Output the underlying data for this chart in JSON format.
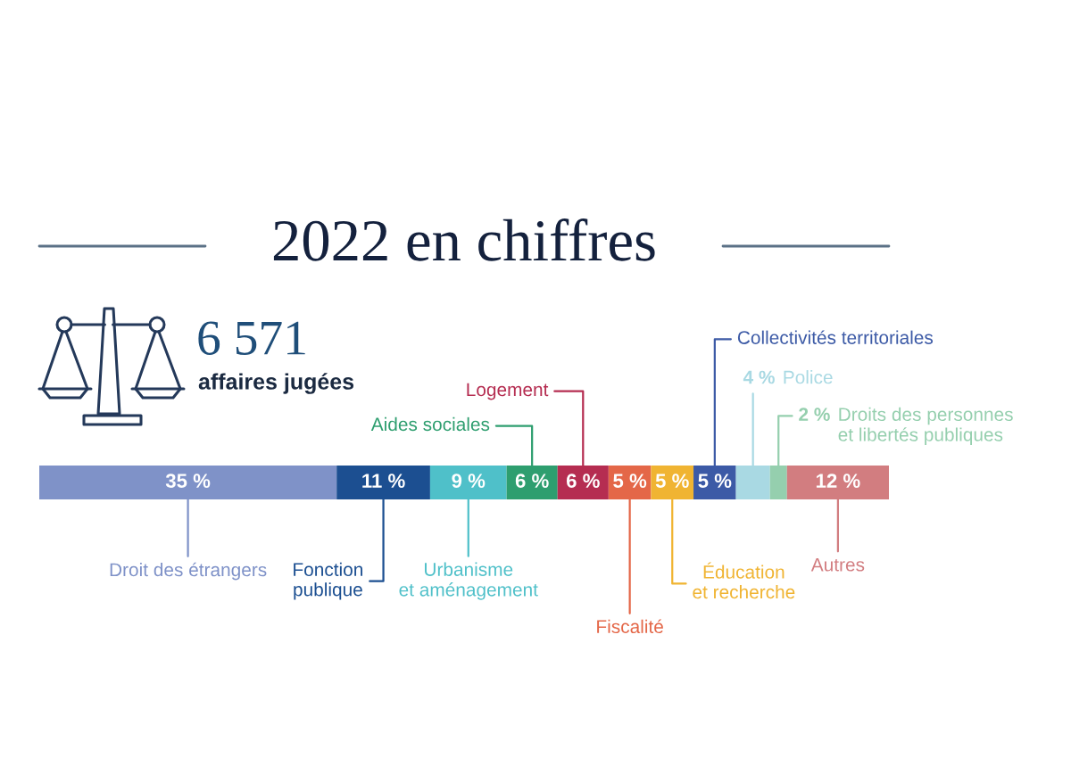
{
  "chart_data": {
    "type": "bar",
    "orientation": "horizontal",
    "stacked": true,
    "title": "2022 en chiffres",
    "annotations": [
      "6 571",
      "affaires jugées"
    ],
    "categories": [
      null
    ],
    "tick_labels": false,
    "series": [
      {
        "name": "Droit des étrangers",
        "color": "#7f92c8",
        "values": [
          35
        ],
        "value_labels": [
          "35 %"
        ]
      },
      {
        "name": "Fonction publique",
        "color": "#1c4f91",
        "values": [
          11
        ],
        "value_labels": [
          "11 %"
        ]
      },
      {
        "name": "Urbanisme et aménagement",
        "color": "#4fc0c9",
        "values": [
          9
        ],
        "value_labels": [
          "9 %"
        ]
      },
      {
        "name": "Aides sociales",
        "color": "#2e9e6f",
        "values": [
          6
        ],
        "value_labels": [
          "6 %"
        ]
      },
      {
        "name": "Logement",
        "color": "#b52d51",
        "values": [
          6
        ],
        "value_labels": [
          "6 %"
        ]
      },
      {
        "name": "Fiscalité",
        "color": "#e46748",
        "values": [
          5
        ],
        "value_labels": [
          "5 %"
        ]
      },
      {
        "name": "Éducation et recherche",
        "color": "#f0b432",
        "values": [
          5
        ],
        "value_labels": [
          "5 %"
        ]
      },
      {
        "name": "Collectivités territoriales",
        "color": "#3c5aa6",
        "values": [
          5
        ],
        "value_labels": [
          "5 %"
        ]
      },
      {
        "name": "Police",
        "color": "#a9d9e3",
        "values": [
          4
        ],
        "value_labels": [
          "4 %"
        ]
      },
      {
        "name": "Droits des personnes et libertés publiques",
        "color": "#95cfae",
        "values": [
          2
        ],
        "value_labels": [
          "2 %"
        ]
      },
      {
        "name": "Autres",
        "color": "#d27d80",
        "values": [
          12
        ],
        "value_labels": [
          "12 %"
        ]
      }
    ]
  }
}
